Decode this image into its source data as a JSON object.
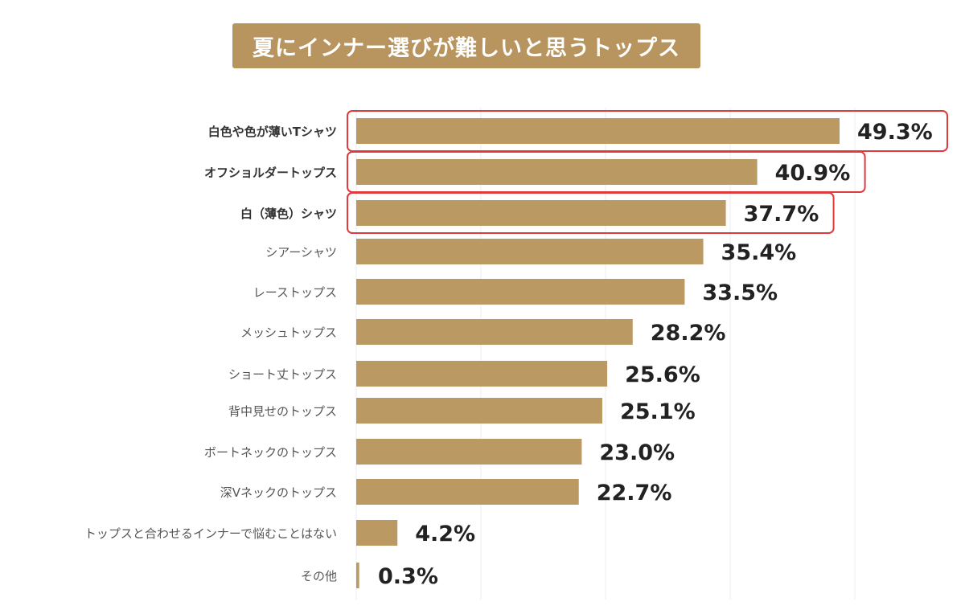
{
  "chart_data": {
    "type": "bar",
    "orientation": "horizontal",
    "title": "夏にインナー選びが難しいと思うトップス",
    "xlabel": "",
    "ylabel": "",
    "xlim": [
      0,
      50
    ],
    "grid": true,
    "value_suffix": "%",
    "bar_color": "#bb9963",
    "highlight_color": "#e03a3e",
    "categories": [
      "白色や色が薄いTシャツ",
      "オフショルダートップス",
      "白（薄色）シャツ",
      "シアーシャツ",
      "レーストップス",
      "メッシュトップス",
      "ショート丈トップス",
      "背中見せのトップス",
      "ボートネックのトップス",
      "深Vネックのトップス",
      "トップスと合わせるインナーで悩むことはない",
      "その他"
    ],
    "values": [
      49.3,
      40.9,
      37.7,
      35.4,
      33.5,
      28.2,
      25.6,
      25.1,
      23.0,
      22.7,
      4.2,
      0.3
    ],
    "labels": [
      "49.3%",
      "40.9%",
      "37.7%",
      "35.4%",
      "33.5%",
      "28.2%",
      "25.6%",
      "25.1%",
      "23.0%",
      "22.7%",
      "4.2%",
      "0.3%"
    ],
    "highlighted": [
      true,
      true,
      true,
      false,
      false,
      false,
      false,
      false,
      false,
      false,
      false,
      false
    ]
  }
}
